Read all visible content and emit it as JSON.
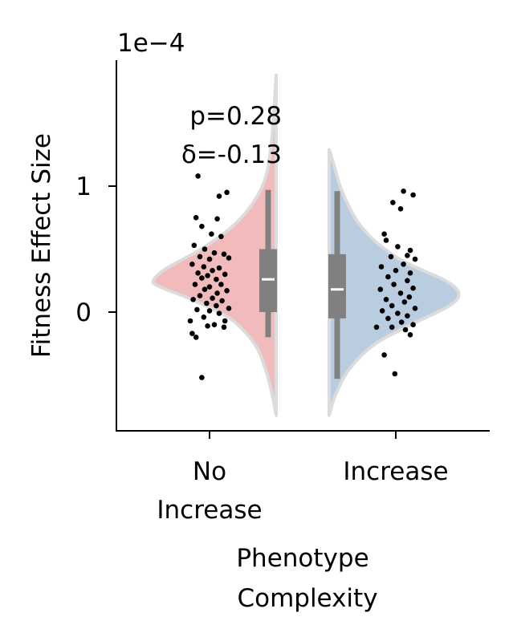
{
  "chart_data": {
    "type": "violin",
    "offset_label": "1e−4",
    "ylabel": "Fitness Effect Size",
    "xlabel_lines": [
      "Phenotype",
      "Complexity"
    ],
    "y_unit_scale": 0.0001,
    "ylim": [
      -0.93,
      1.98
    ],
    "yticks": [
      {
        "value": 0,
        "label": "0"
      },
      {
        "value": 1,
        "label": "1"
      }
    ],
    "stats_text": [
      "p=0.28",
      "δ=-0.13"
    ],
    "groups": [
      {
        "key": "no-increase",
        "label_lines": [
          "No",
          "Increase"
        ],
        "color": "#f2bbbb",
        "side": "left",
        "kde": [
          [
            -0.82,
            0.0
          ],
          [
            -0.65,
            0.03
          ],
          [
            -0.45,
            0.08
          ],
          [
            -0.25,
            0.16
          ],
          [
            -0.05,
            0.34
          ],
          [
            0.1,
            0.62
          ],
          [
            0.2,
            0.85
          ],
          [
            0.25,
            0.9
          ],
          [
            0.35,
            0.8
          ],
          [
            0.5,
            0.55
          ],
          [
            0.7,
            0.3
          ],
          [
            0.9,
            0.15
          ],
          [
            1.1,
            0.07
          ],
          [
            1.4,
            0.03
          ],
          [
            1.88,
            0.0
          ]
        ],
        "box": {
          "whisker_low": -0.2,
          "q1": 0.0,
          "median": 0.26,
          "q3": 0.5,
          "whisker_high": 0.97
        },
        "points": [
          [
            -0.12,
            1.08
          ],
          [
            0.1,
            0.92
          ],
          [
            0.18,
            0.95
          ],
          [
            -0.14,
            0.75
          ],
          [
            0.08,
            0.74
          ],
          [
            -0.08,
            0.68
          ],
          [
            0.02,
            0.62
          ],
          [
            0.12,
            0.6
          ],
          [
            -0.16,
            0.53
          ],
          [
            -0.05,
            0.5
          ],
          [
            0.05,
            0.47
          ],
          [
            0.15,
            0.46
          ],
          [
            -0.1,
            0.44
          ],
          [
            0.0,
            0.42
          ],
          [
            0.2,
            0.43
          ],
          [
            -0.18,
            0.38
          ],
          [
            -0.06,
            0.36
          ],
          [
            0.1,
            0.35
          ],
          [
            0.03,
            0.33
          ],
          [
            -0.12,
            0.31
          ],
          [
            0.16,
            0.3
          ],
          [
            -0.02,
            0.29
          ],
          [
            -0.08,
            0.27
          ],
          [
            0.07,
            0.26
          ],
          [
            0.12,
            0.22
          ],
          [
            -0.15,
            0.22
          ],
          [
            0.0,
            0.2
          ],
          [
            -0.05,
            0.18
          ],
          [
            0.18,
            0.17
          ],
          [
            0.08,
            0.15
          ],
          [
            -0.1,
            0.13
          ],
          [
            0.03,
            0.11
          ],
          [
            -0.17,
            0.1
          ],
          [
            0.13,
            0.09
          ],
          [
            -0.03,
            0.07
          ],
          [
            0.07,
            0.05
          ],
          [
            0.2,
            0.03
          ],
          [
            -0.13,
            0.02
          ],
          [
            0.0,
            0.01
          ],
          [
            0.1,
            -0.01
          ],
          [
            -0.06,
            -0.04
          ],
          [
            0.16,
            -0.07
          ],
          [
            -0.2,
            -0.07
          ],
          [
            0.05,
            -0.1
          ],
          [
            -0.02,
            -0.11
          ],
          [
            0.15,
            -0.12
          ],
          [
            -0.18,
            -0.17
          ],
          [
            -0.14,
            -0.2
          ],
          [
            -0.08,
            -0.52
          ]
        ]
      },
      {
        "key": "increase",
        "label_lines": [
          "Increase"
        ],
        "color": "#b9cce0",
        "side": "right",
        "kde": [
          [
            -0.82,
            0.0
          ],
          [
            -0.65,
            0.05
          ],
          [
            -0.45,
            0.15
          ],
          [
            -0.25,
            0.34
          ],
          [
            -0.1,
            0.6
          ],
          [
            0.05,
            0.88
          ],
          [
            0.15,
            0.95
          ],
          [
            0.25,
            0.85
          ],
          [
            0.4,
            0.55
          ],
          [
            0.55,
            0.35
          ],
          [
            0.7,
            0.22
          ],
          [
            0.85,
            0.14
          ],
          [
            1.0,
            0.08
          ],
          [
            1.15,
            0.04
          ],
          [
            1.29,
            0.0
          ]
        ],
        "box": {
          "whisker_low": -0.53,
          "q1": -0.05,
          "median": 0.18,
          "q3": 0.46,
          "whisker_high": 0.96
        },
        "points": [
          [
            0.08,
            0.96
          ],
          [
            0.18,
            0.93
          ],
          [
            -0.03,
            0.87
          ],
          [
            0.05,
            0.82
          ],
          [
            -0.12,
            0.62
          ],
          [
            -0.1,
            0.57
          ],
          [
            0.02,
            0.52
          ],
          [
            0.15,
            0.49
          ],
          [
            0.12,
            0.45
          ],
          [
            -0.05,
            0.44
          ],
          [
            0.2,
            0.42
          ],
          [
            0.08,
            0.38
          ],
          [
            -0.15,
            0.36
          ],
          [
            0.0,
            0.33
          ],
          [
            0.15,
            0.31
          ],
          [
            -0.08,
            0.28
          ],
          [
            0.12,
            0.25
          ],
          [
            -0.02,
            0.22
          ],
          [
            0.18,
            0.19
          ],
          [
            -0.16,
            0.18
          ],
          [
            0.05,
            0.15
          ],
          [
            0.14,
            0.12
          ],
          [
            -0.1,
            0.1
          ],
          [
            0.09,
            0.08
          ],
          [
            -0.04,
            0.05
          ],
          [
            0.2,
            0.03
          ],
          [
            -0.14,
            0.01
          ],
          [
            0.02,
            -0.01
          ],
          [
            0.12,
            -0.03
          ],
          [
            -0.08,
            -0.05
          ],
          [
            0.06,
            -0.08
          ],
          [
            0.18,
            -0.1
          ],
          [
            -0.2,
            -0.12
          ],
          [
            -0.04,
            -0.12
          ],
          [
            0.1,
            -0.14
          ],
          [
            0.15,
            -0.18
          ],
          [
            -0.12,
            -0.34
          ],
          [
            -0.01,
            -0.49
          ]
        ]
      }
    ]
  }
}
